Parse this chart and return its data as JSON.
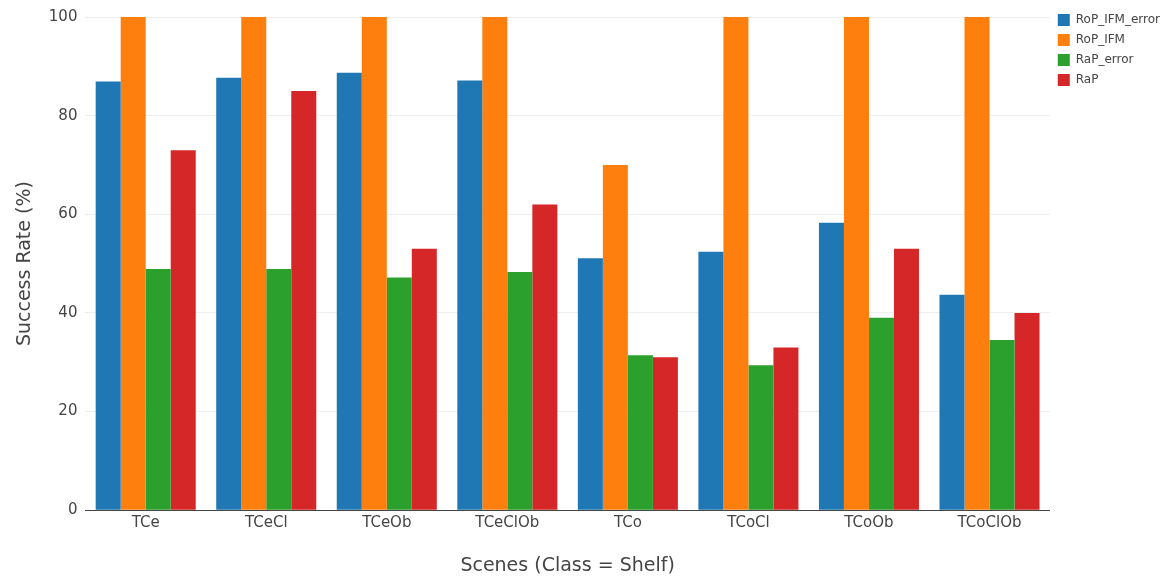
{
  "chart_data": {
    "type": "bar",
    "xlabel": "Scenes (Class = Shelf)",
    "ylabel": "Success Rate (%)",
    "categories": [
      "TCe",
      "TCeCl",
      "TCeOb",
      "TCeClOb",
      "TCo",
      "TCoCl",
      "TCoOb",
      "TCoClOb"
    ],
    "series": [
      {
        "name": "RoP_IFM_error",
        "color": "#1f77b4",
        "values": [
          86.9,
          87.7,
          88.7,
          87.1,
          51.1,
          52.4,
          58.3,
          43.7
        ]
      },
      {
        "name": "RoP_IFM",
        "color": "#ff7f0e",
        "values": [
          100,
          100,
          100,
          100,
          70,
          100,
          100,
          100
        ]
      },
      {
        "name": "RaP_error",
        "color": "#2ca02c",
        "values": [
          48.9,
          48.9,
          47.2,
          48.3,
          31.4,
          29.4,
          39.0,
          34.5
        ]
      },
      {
        "name": "RaP",
        "color": "#d62728",
        "values": [
          73,
          85,
          53,
          62,
          31,
          33,
          53,
          40
        ]
      }
    ],
    "ylim": [
      0,
      100
    ],
    "yticks": [
      0,
      20,
      40,
      60,
      80,
      100
    ],
    "grid": "y",
    "legend": "top right"
  }
}
